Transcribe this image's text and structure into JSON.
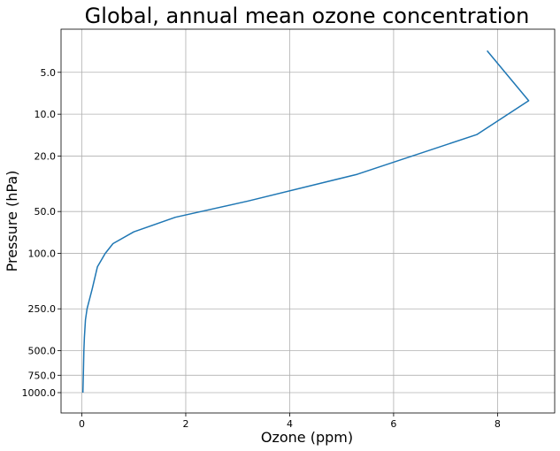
{
  "chart_data": {
    "type": "line",
    "title": "Global, annual mean ozone concentration",
    "xlabel": "Ozone (ppm)",
    "ylabel": "Pressure (hPa)",
    "xlim": [
      -0.4,
      9.1
    ],
    "ylim": [
      1400,
      2.45
    ],
    "yscale": "log",
    "grid": true,
    "x_ticks": [
      0,
      2,
      4,
      6,
      8
    ],
    "x_tick_labels": [
      "0",
      "2",
      "4",
      "6",
      "8"
    ],
    "y_ticks": [
      5,
      10,
      20,
      50,
      100,
      250,
      500,
      750,
      1000
    ],
    "y_tick_labels": [
      "5.0",
      "10.0",
      "20.0",
      "50.0",
      "100.0",
      "250.0",
      "500.0",
      "750.0",
      "1000.0"
    ],
    "series": [
      {
        "color": "#1f77b4",
        "x": [
          7.8,
          8.6,
          7.6,
          5.3,
          3.2,
          1.8,
          1.0,
          0.6,
          0.45,
          0.3,
          0.2,
          0.1,
          0.07,
          0.05,
          0.04,
          0.03,
          0.02
        ],
        "y": [
          3.5,
          8,
          14,
          27,
          42,
          55,
          70,
          85,
          100,
          125,
          180,
          250,
          300,
          400,
          500,
          700,
          1000
        ]
      }
    ]
  }
}
